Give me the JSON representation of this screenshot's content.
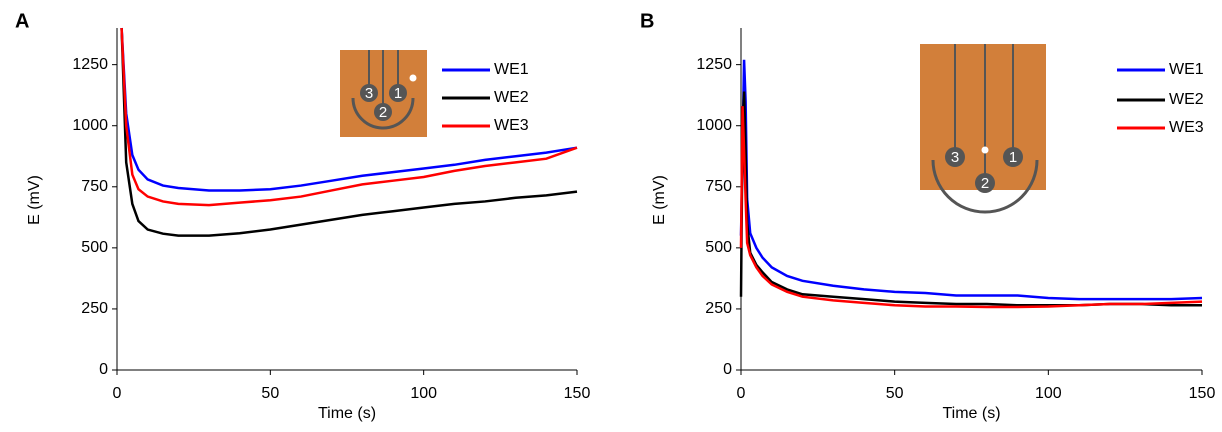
{
  "chart_data": [
    {
      "type": "line",
      "panel_label": "A",
      "x_label": "Time (s)",
      "y_label": "E (mV)",
      "xlim": [
        0,
        150
      ],
      "ylim": [
        0,
        1400
      ],
      "xticks": [
        0,
        50,
        100,
        150
      ],
      "yticks": [
        0,
        250,
        500,
        750,
        1000,
        1250
      ],
      "inset_labels": [
        "1",
        "2",
        "3"
      ],
      "x": [
        1.5,
        3,
        5,
        7,
        10,
        15,
        20,
        30,
        40,
        50,
        60,
        70,
        80,
        90,
        100,
        110,
        120,
        130,
        140,
        150
      ],
      "series": [
        {
          "name": "WE1",
          "color": "#0000ff",
          "values": [
            1400,
            1050,
            880,
            820,
            780,
            755,
            745,
            735,
            735,
            740,
            755,
            775,
            795,
            810,
            825,
            840,
            860,
            875,
            890,
            910
          ]
        },
        {
          "name": "WE2",
          "color": "#000000",
          "values": [
            1400,
            850,
            680,
            610,
            575,
            558,
            550,
            550,
            560,
            575,
            595,
            615,
            635,
            650,
            665,
            680,
            690,
            705,
            715,
            730
          ]
        },
        {
          "name": "WE3",
          "color": "#ff0000",
          "values": [
            1400,
            1000,
            800,
            740,
            710,
            690,
            680,
            675,
            685,
            695,
            710,
            735,
            760,
            775,
            790,
            815,
            835,
            850,
            865,
            910
          ]
        }
      ]
    },
    {
      "type": "line",
      "panel_label": "B",
      "x_label": "Time (s)",
      "y_label": "E (mV)",
      "xlim": [
        0,
        150
      ],
      "ylim": [
        0,
        1400
      ],
      "xticks": [
        0,
        50,
        100,
        150
      ],
      "yticks": [
        0,
        250,
        500,
        750,
        1000,
        1250
      ],
      "inset_labels": [
        "1",
        "2",
        "3"
      ],
      "x": [
        0,
        0.5,
        1,
        1.5,
        2,
        3,
        5,
        7,
        10,
        15,
        20,
        30,
        40,
        50,
        60,
        70,
        80,
        90,
        100,
        110,
        120,
        130,
        140,
        150
      ],
      "series": [
        {
          "name": "WE1",
          "color": "#0000ff",
          "values": [
            550,
            900,
            1270,
            1100,
            700,
            560,
            500,
            460,
            420,
            385,
            365,
            345,
            330,
            320,
            315,
            305,
            305,
            305,
            295,
            290,
            290,
            290,
            290,
            295
          ]
        },
        {
          "name": "WE2",
          "color": "#000000",
          "values": [
            300,
            1000,
            1140,
            900,
            600,
            480,
            430,
            400,
            360,
            330,
            310,
            300,
            290,
            280,
            275,
            270,
            270,
            265,
            265,
            265,
            270,
            270,
            265,
            265
          ]
        },
        {
          "name": "WE3",
          "color": "#ff0000",
          "values": [
            500,
            1080,
            900,
            700,
            520,
            470,
            420,
            385,
            350,
            320,
            300,
            285,
            275,
            265,
            260,
            260,
            258,
            258,
            260,
            265,
            270,
            270,
            275,
            280
          ]
        }
      ]
    }
  ]
}
